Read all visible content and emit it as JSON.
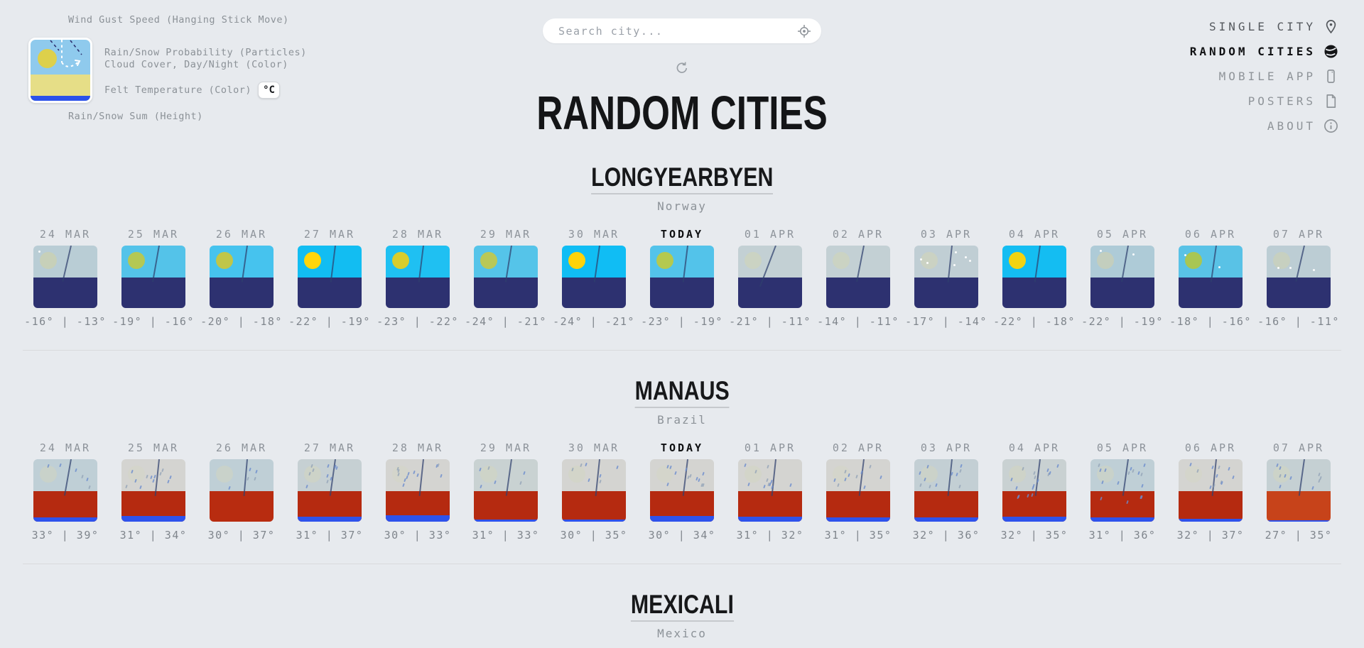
{
  "header": {
    "search_placeholder": "Search city...",
    "title": "RANDOM CITIES",
    "nav": [
      {
        "label": "SINGLE CITY",
        "icon": "pin-icon",
        "state": "normal"
      },
      {
        "label": "RANDOM CITIES",
        "icon": "globe-icon",
        "state": "active"
      },
      {
        "label": "MOBILE APP",
        "icon": "phone-icon",
        "state": "muted"
      },
      {
        "label": "POSTERS",
        "icon": "poster-icon",
        "state": "muted"
      },
      {
        "label": "ABOUT",
        "icon": "info-icon",
        "state": "muted"
      }
    ]
  },
  "legend": {
    "wind": "Wind Gust Speed (Hanging Stick Move)",
    "rain_prob": "Rain/Snow Probability (Particles)",
    "cloud": "Cloud Cover, Day/Night (Color)",
    "felt": "Felt Temperature (Color)",
    "unit": "°C",
    "rain_sum": "Rain/Snow Sum (Height)"
  },
  "dates": [
    "24 MAR",
    "25 MAR",
    "26 MAR",
    "27 MAR",
    "28 MAR",
    "29 MAR",
    "30 MAR",
    "TODAY",
    "01 APR",
    "02 APR",
    "03 APR",
    "04 APR",
    "05 APR",
    "06 APR",
    "07 APR"
  ],
  "colors": {
    "background": "#e7eaee",
    "felt_cold": "#2d3170",
    "felt_hot": "#b52a10",
    "rain_strip": "#2e52ec",
    "sun_bright": "#ffd60b",
    "accent_black": "#141517"
  },
  "cities": [
    {
      "name": "LONGYEARBYEN",
      "country": "Norway",
      "days": [
        {
          "date": "24 MAR",
          "temp": "-16° | -13°",
          "sky": "#b9cdd5",
          "sun": "#c9d0b4",
          "sun_alpha": 0.85,
          "felt": "#2d3170",
          "rain_mm": 0,
          "stick": 13,
          "rain_particles": 0,
          "snow_particles": 1
        },
        {
          "date": "25 MAR",
          "temp": "-19° | -16°",
          "sky": "#54c3e9",
          "sun": "#b4c854",
          "sun_alpha": 1,
          "felt": "#2d3170",
          "rain_mm": 0,
          "stick": 10,
          "rain_particles": 0,
          "snow_particles": 0
        },
        {
          "date": "26 MAR",
          "temp": "-20° | -18°",
          "sky": "#46c3ee",
          "sun": "#c0c649",
          "sun_alpha": 1,
          "felt": "#2d3170",
          "rain_mm": 0,
          "stick": 8,
          "rain_particles": 0,
          "snow_particles": 0
        },
        {
          "date": "27 MAR",
          "temp": "-22° | -19°",
          "sky": "#12bdf2",
          "sun": "#ffd60b",
          "sun_alpha": 1,
          "felt": "#2d3170",
          "rain_mm": 0,
          "stick": 7,
          "rain_particles": 0,
          "snow_particles": 0
        },
        {
          "date": "28 MAR",
          "temp": "-23° | -22°",
          "sky": "#1fc0f2",
          "sun": "#d8cd2c",
          "sun_alpha": 1,
          "felt": "#2d3170",
          "rain_mm": 0,
          "stick": 7,
          "rain_particles": 0,
          "snow_particles": 0
        },
        {
          "date": "29 MAR",
          "temp": "-24° | -21°",
          "sky": "#55c4e9",
          "sun": "#b9c856",
          "sun_alpha": 1,
          "felt": "#2d3170",
          "rain_mm": 0,
          "stick": 9,
          "rain_particles": 0,
          "snow_particles": 0
        },
        {
          "date": "30 MAR",
          "temp": "-24° | -21°",
          "sky": "#10bdf4",
          "sun": "#ffd30a",
          "sun_alpha": 1,
          "felt": "#2d3170",
          "rain_mm": 0,
          "stick": 8,
          "rain_particles": 0,
          "snow_particles": 0
        },
        {
          "date": "TODAY",
          "temp": "-23° | -19°",
          "sky": "#53c3ea",
          "sun": "#b5c94f",
          "sun_alpha": 1,
          "felt": "#2d3170",
          "rain_mm": 0,
          "stick": 7,
          "rain_particles": 0,
          "snow_particles": 0
        },
        {
          "date": "01 APR",
          "temp": "-21° | -11°",
          "sky": "#c3d0d4",
          "sun": "#cdd3c0",
          "sun_alpha": 0.85,
          "felt": "#2d3170",
          "rain_mm": 0,
          "stick": 21,
          "stick_len": 62,
          "rain_particles": 0,
          "snow_particles": 0
        },
        {
          "date": "02 APR",
          "temp": "-14° | -11°",
          "sky": "#c3d0d4",
          "sun": "#cdd3c0",
          "sun_alpha": 0.85,
          "felt": "#2d3170",
          "rain_mm": 0,
          "stick": 11,
          "rain_particles": 0,
          "snow_particles": 0
        },
        {
          "date": "03 APR",
          "temp": "-17° | -14°",
          "sky": "#c0ced4",
          "sun": "#ccd2bf",
          "sun_alpha": 0.85,
          "felt": "#2d3170",
          "rain_mm": 0,
          "stick": 6,
          "rain_particles": 0,
          "snow_particles": 6
        },
        {
          "date": "04 APR",
          "temp": "-22° | -18°",
          "sky": "#14bdf2",
          "sun": "#f2d312",
          "sun_alpha": 1,
          "felt": "#2d3170",
          "rain_mm": 0,
          "stick": 8,
          "rain_particles": 0,
          "snow_particles": 0
        },
        {
          "date": "05 APR",
          "temp": "-22° | -19°",
          "sky": "#aecbd7",
          "sun": "#c7cfba",
          "sun_alpha": 0.85,
          "felt": "#2d3170",
          "rain_mm": 0,
          "stick": 10,
          "rain_particles": 0,
          "snow_particles": 2
        },
        {
          "date": "06 APR",
          "temp": "-18° | -16°",
          "sky": "#59c2e6",
          "sun": "#a8c653",
          "sun_alpha": 1,
          "felt": "#2d3170",
          "rain_mm": 0,
          "stick": 8,
          "rain_particles": 0,
          "snow_particles": 2
        },
        {
          "date": "07 APR",
          "temp": "-16° | -11°",
          "sky": "#bccdd4",
          "sun": "#c9d0bc",
          "sun_alpha": 0.85,
          "felt": "#2d3170",
          "rain_mm": 0,
          "stick": 13,
          "rain_particles": 0,
          "snow_particles": 3
        }
      ]
    },
    {
      "name": "MANAUS",
      "country": "Brazil",
      "days": [
        {
          "date": "24 MAR",
          "temp": "33° | 39°",
          "sky": "#bfcfd6",
          "sun": "#d3d6bd",
          "sun_alpha": 0.5,
          "felt": "#b52a10",
          "rain_mm": 6,
          "stick": 10,
          "rain_particles": 6,
          "snow_particles": 0
        },
        {
          "date": "25 MAR",
          "temp": "31° | 34°",
          "sky": "#d4d4d1",
          "sun": "#d3d6bd",
          "sun_alpha": 0.3,
          "felt": "#b52a10",
          "rain_mm": 8,
          "stick": 6,
          "rain_particles": 12,
          "snow_particles": 0
        },
        {
          "date": "26 MAR",
          "temp": "30° | 37°",
          "sky": "#bfcfd6",
          "sun": "#d3d6bd",
          "sun_alpha": 0.5,
          "felt": "#b82c10",
          "rain_mm": 0,
          "stick": 5,
          "rain_particles": 5,
          "snow_particles": 0
        },
        {
          "date": "27 MAR",
          "temp": "31° | 37°",
          "sky": "#c6d0d3",
          "sun": "#d3d6bd",
          "sun_alpha": 0.5,
          "felt": "#b52a10",
          "rain_mm": 7,
          "stick": 8,
          "rain_particles": 10,
          "snow_particles": 0
        },
        {
          "date": "28 MAR",
          "temp": "30° | 33°",
          "sky": "#d4d4d1",
          "sun": "#d3d6bd",
          "sun_alpha": 0.3,
          "felt": "#b52a10",
          "rain_mm": 9,
          "stick": 6,
          "rain_particles": 12,
          "snow_particles": 0
        },
        {
          "date": "29 MAR",
          "temp": "31° | 33°",
          "sky": "#c9d2d2",
          "sun": "#d3d6bd",
          "sun_alpha": 0.5,
          "felt": "#b52a10",
          "rain_mm": 3,
          "stick": 8,
          "rain_particles": 6,
          "snow_particles": 0
        },
        {
          "date": "30 MAR",
          "temp": "30° | 35°",
          "sky": "#d4d4d1",
          "sun": "#d3d6bd",
          "sun_alpha": 0.4,
          "felt": "#b52a10",
          "rain_mm": 3,
          "stick": 6,
          "rain_particles": 7,
          "snow_particles": 0
        },
        {
          "date": "TODAY",
          "temp": "30° | 34°",
          "sky": "#d4d4d1",
          "sun": "#d3d6bd",
          "sun_alpha": 0.3,
          "felt": "#b52a10",
          "rain_mm": 8,
          "stick": 7,
          "rain_particles": 12,
          "snow_particles": 0
        },
        {
          "date": "01 APR",
          "temp": "31° | 32°",
          "sky": "#d4d4d1",
          "sun": "#d3d6bd",
          "sun_alpha": 0.4,
          "felt": "#b52a10",
          "rain_mm": 7,
          "stick": 6,
          "rain_particles": 11,
          "snow_particles": 0
        },
        {
          "date": "02 APR",
          "temp": "31° | 35°",
          "sky": "#d4d4d1",
          "sun": "#d3d6bd",
          "sun_alpha": 0.3,
          "felt": "#b52a10",
          "rain_mm": 6,
          "stick": 7,
          "rain_particles": 10,
          "snow_particles": 0
        },
        {
          "date": "03 APR",
          "temp": "32° | 36°",
          "sky": "#c3cfd4",
          "sun": "#d3d6bd",
          "sun_alpha": 0.5,
          "felt": "#b52a10",
          "rain_mm": 6,
          "stick": 6,
          "rain_particles": 11,
          "snow_particles": 0
        },
        {
          "date": "04 APR",
          "temp": "32° | 35°",
          "sky": "#c9d1d2",
          "sun": "#d3d6bd",
          "sun_alpha": 0.5,
          "felt": "#b52a10",
          "rain_mm": 7,
          "stick": 7,
          "rain_particles": 12,
          "snow_particles": 0,
          "deep_particles": 4
        },
        {
          "date": "05 APR",
          "temp": "31° | 36°",
          "sky": "#bfcfd6",
          "sun": "#d3d6bd",
          "sun_alpha": 0.5,
          "felt": "#b52a10",
          "rain_mm": 6,
          "stick": 8,
          "rain_particles": 12,
          "snow_particles": 0,
          "deep_particles": 4
        },
        {
          "date": "06 APR",
          "temp": "32° | 37°",
          "sky": "#d4d4d1",
          "sun": "#d3d6bd",
          "sun_alpha": 0.3,
          "felt": "#b52a10",
          "rain_mm": 4,
          "stick": 6,
          "rain_particles": 11,
          "snow_particles": 0
        },
        {
          "date": "07 APR",
          "temp": "27° | 35°",
          "sky": "#c5d0d3",
          "sun": "#d3d6bd",
          "sun_alpha": 0.5,
          "felt": "#c7431a",
          "rain_mm": 2,
          "stick": 8,
          "rain_particles": 10,
          "snow_particles": 0
        }
      ]
    },
    {
      "name": "MEXICALI",
      "country": "Mexico",
      "days": []
    }
  ]
}
